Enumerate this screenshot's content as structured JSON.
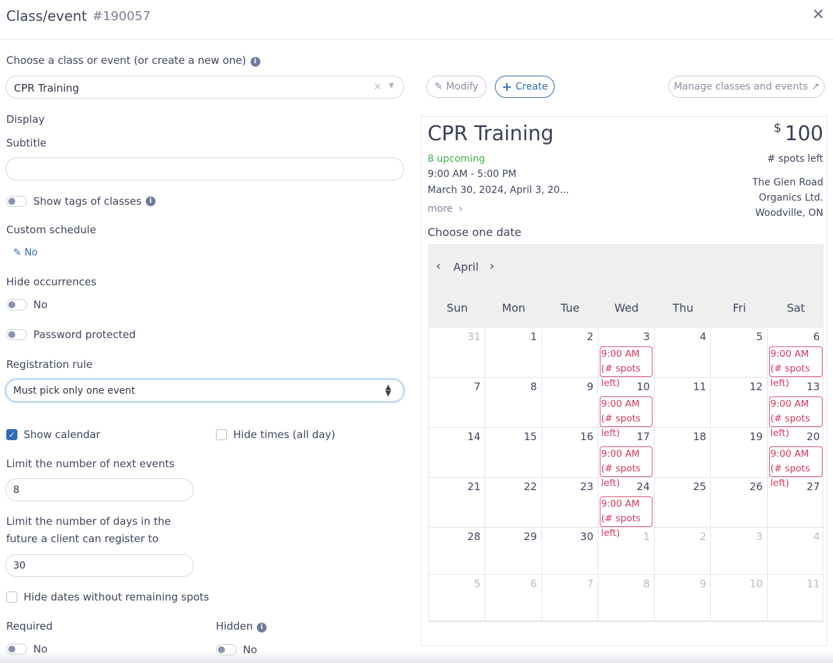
{
  "header": {
    "title": "Class/event",
    "id": "#190057",
    "close_icon": "close-icon"
  },
  "form": {
    "choose_label": "Choose a class or event (or create a new one)",
    "choose_value": "CPR Training",
    "display_label": "Display",
    "subtitle_label": "Subtitle",
    "subtitle_value": "",
    "show_tags_label": "Show tags of classes",
    "custom_schedule_label": "Custom schedule",
    "custom_schedule_value": "No",
    "hide_occ_label": "Hide occurrences",
    "hide_occ_value": "No",
    "password_label": "Password protected",
    "reg_rule_label": "Registration rule",
    "reg_rule_value": "Must pick only one event",
    "show_calendar_label": "Show calendar",
    "show_calendar_checked": true,
    "hide_times_label": "Hide times (all day)",
    "hide_times_checked": false,
    "limit_next_label": "Limit the number of next events",
    "limit_next_value": "8",
    "limit_days_label1": "Limit the number of days in the",
    "limit_days_label2": "future a client can register to",
    "limit_days_value": "30",
    "hide_dates_label": "Hide dates without remaining spots",
    "hide_dates_checked": false,
    "required_label": "Required",
    "required_value": "No",
    "hidden_label": "Hidden",
    "hidden_value": "No"
  },
  "toolbar": {
    "modify": "Modify",
    "create": "Create",
    "manage": "Manage classes and events"
  },
  "preview": {
    "title": "CPR Training",
    "currency": "$",
    "price": "100",
    "upcoming": "8 upcoming",
    "upcoming_color": "#3fae49",
    "time": "9:00 AM - 5:00 PM",
    "dates": "March 30, 2024, April 3, 20...",
    "more": "more",
    "spots": "# spots left",
    "location": [
      "The Glen Road",
      "Organics Ltd.",
      "Woodville, ON"
    ],
    "choose_date": "Choose one date",
    "month": "April",
    "weekdays": [
      "Sun",
      "Mon",
      "Tue",
      "Wed",
      "Thu",
      "Fri",
      "Sat"
    ],
    "event_label": "9:00 AM (# spots left)",
    "event_color": "#d6375f",
    "weeks": [
      [
        {
          "d": "31",
          "m": true
        },
        {
          "d": "1"
        },
        {
          "d": "2"
        },
        {
          "d": "3",
          "e": true
        },
        {
          "d": "4"
        },
        {
          "d": "5"
        },
        {
          "d": "6",
          "e": true
        }
      ],
      [
        {
          "d": "7"
        },
        {
          "d": "8"
        },
        {
          "d": "9"
        },
        {
          "d": "10",
          "e": true
        },
        {
          "d": "11"
        },
        {
          "d": "12"
        },
        {
          "d": "13",
          "e": true
        }
      ],
      [
        {
          "d": "14"
        },
        {
          "d": "15"
        },
        {
          "d": "16"
        },
        {
          "d": "17",
          "e": true
        },
        {
          "d": "18"
        },
        {
          "d": "19"
        },
        {
          "d": "20",
          "e": true
        }
      ],
      [
        {
          "d": "21"
        },
        {
          "d": "22"
        },
        {
          "d": "23"
        },
        {
          "d": "24",
          "e": true
        },
        {
          "d": "25"
        },
        {
          "d": "26"
        },
        {
          "d": "27"
        }
      ],
      [
        {
          "d": "28"
        },
        {
          "d": "29"
        },
        {
          "d": "30"
        },
        {
          "d": "1",
          "m": true
        },
        {
          "d": "2",
          "m": true
        },
        {
          "d": "3",
          "m": true
        },
        {
          "d": "4",
          "m": true
        }
      ],
      [
        {
          "d": "5",
          "m": true
        },
        {
          "d": "6",
          "m": true
        },
        {
          "d": "7",
          "m": true
        },
        {
          "d": "8",
          "m": true
        },
        {
          "d": "9",
          "m": true
        },
        {
          "d": "10",
          "m": true
        },
        {
          "d": "11",
          "m": true
        }
      ]
    ]
  }
}
